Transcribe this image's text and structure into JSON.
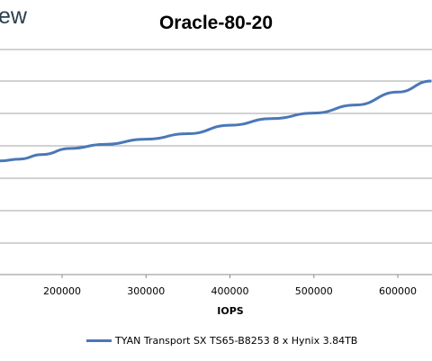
{
  "logo": {
    "text": "ew"
  },
  "chart_data": {
    "type": "line",
    "title": "Oracle-80-20",
    "xlabel": "IOPS",
    "ylabel": "",
    "x_ticks": [
      200000,
      300000,
      400000,
      500000,
      600000
    ],
    "x_tick_labels": [
      "200000",
      "300000",
      "400000",
      "500000",
      "600000"
    ],
    "grid": true,
    "legend_position": "bottom",
    "series": [
      {
        "name": "TYAN Transport SX TS65-B8253 8 x Hynix 3.84TB",
        "color": "#4a78b7",
        "x": [
          110000,
          125000,
          150000,
          175000,
          210000,
          250000,
          300000,
          350000,
          400000,
          450000,
          500000,
          550000,
          600000,
          640000
        ],
        "y": [
          0.2,
          0.3,
          0.8,
          2.0,
          3.7,
          4.8,
          6.2,
          7.7,
          10.0,
          11.8,
          13.3,
          15.5,
          19.0,
          22.0
        ]
      }
    ]
  }
}
